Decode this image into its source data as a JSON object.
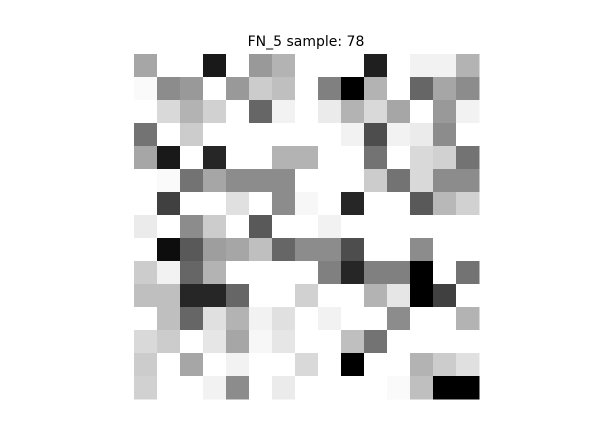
{
  "chart_data": {
    "type": "heatmap",
    "title": "FN_5 sample: 78",
    "colormap": "gray_r",
    "value_range": [
      0,
      1
    ],
    "axes_visible": false,
    "rows": 15,
    "cols": 15,
    "values": [
      [
        0.35,
        0,
        0,
        0.9,
        0,
        0.4,
        0.3,
        0,
        0,
        0,
        0.88,
        0,
        0.05,
        0.05,
        0.3
      ],
      [
        0.02,
        0.45,
        0.4,
        0,
        0.4,
        0.2,
        0.25,
        0,
        0.5,
        1.0,
        0.3,
        0,
        0.6,
        0.35,
        0.45
      ],
      [
        0,
        0.15,
        0.3,
        0.18,
        0,
        0.6,
        0.05,
        0,
        0.08,
        0.3,
        0.15,
        0.35,
        0,
        0.4,
        0.05
      ],
      [
        0.55,
        0,
        0.2,
        0,
        0,
        0,
        0,
        0,
        0,
        0.05,
        0.7,
        0.05,
        0.08,
        0.45,
        0
      ],
      [
        0.35,
        0.9,
        0,
        0.85,
        0,
        0,
        0.3,
        0.3,
        0,
        0,
        0.55,
        0,
        0.15,
        0.18,
        0.55
      ],
      [
        0,
        0.02,
        0.55,
        0.35,
        0.45,
        0.45,
        0.45,
        0,
        0,
        0,
        0.2,
        0.55,
        0.15,
        0.45,
        0.45
      ],
      [
        0,
        0.75,
        0,
        0,
        0.12,
        0,
        0.45,
        0.03,
        0,
        0.85,
        0,
        0,
        0.65,
        0.28,
        0.18
      ],
      [
        0.08,
        0,
        0.45,
        0.2,
        0,
        0.65,
        0,
        0,
        0.05,
        0,
        0,
        0,
        0,
        0,
        0
      ],
      [
        0,
        0.95,
        0.65,
        0.38,
        0.35,
        0.25,
        0.6,
        0.45,
        0.45,
        0.7,
        0,
        0,
        0.45,
        0,
        0
      ],
      [
        0.2,
        0.05,
        0.6,
        0.3,
        0,
        0,
        0,
        0,
        0.5,
        0.85,
        0.5,
        0.5,
        1.0,
        0,
        0.55
      ],
      [
        0.25,
        0.25,
        0.85,
        0.85,
        0.6,
        0,
        0,
        0.18,
        0,
        0,
        0.3,
        0.1,
        1.0,
        0.75,
        0
      ],
      [
        0,
        0.25,
        0.6,
        0.12,
        0.3,
        0.05,
        0.12,
        0,
        0.05,
        0,
        0,
        0.45,
        0,
        0,
        0.3
      ],
      [
        0.15,
        0.2,
        0,
        0.1,
        0.35,
        0.03,
        0.1,
        0,
        0,
        0.25,
        0.55,
        0,
        0,
        0,
        0
      ],
      [
        0.2,
        0,
        0.35,
        0,
        0.05,
        0,
        0,
        0.15,
        0,
        1.0,
        0,
        0,
        0.3,
        0.2,
        0.12
      ],
      [
        0.18,
        0,
        0,
        0.05,
        0.45,
        0,
        0.08,
        0,
        0,
        0,
        0,
        0.02,
        0.25,
        1.0,
        1.0
      ]
    ]
  }
}
